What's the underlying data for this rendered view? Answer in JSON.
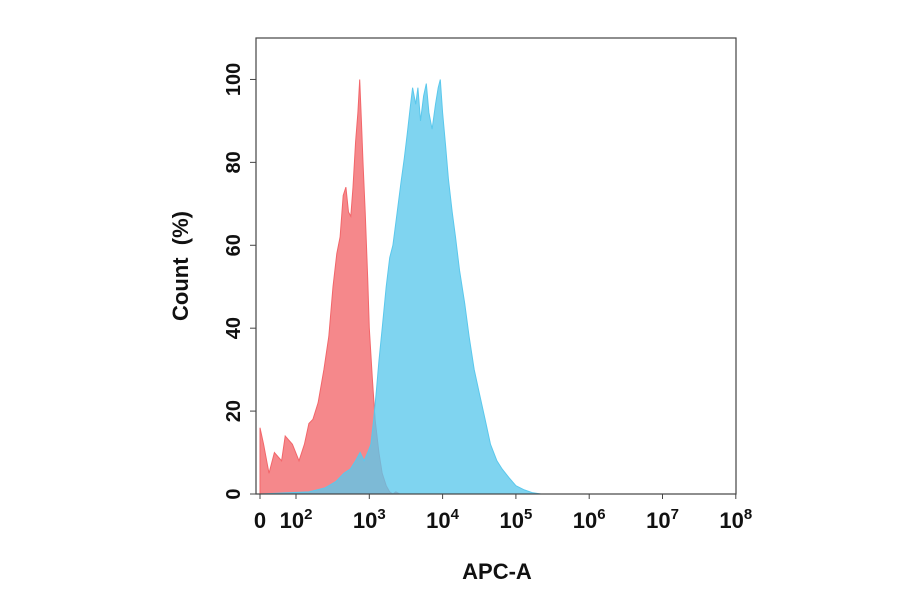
{
  "chart_data": {
    "type": "area",
    "title": "",
    "xlabel": "APC-A",
    "ylabel": "Count  (%)",
    "x_scale": "biexponential",
    "x_ticks": [
      {
        "value": 0,
        "base": "0",
        "exp": ""
      },
      {
        "value": 100,
        "base": "10",
        "exp": "2"
      },
      {
        "value": 1000,
        "base": "10",
        "exp": "3"
      },
      {
        "value": 10000,
        "base": "10",
        "exp": "4"
      },
      {
        "value": 100000,
        "base": "10",
        "exp": "5"
      },
      {
        "value": 1000000,
        "base": "10",
        "exp": "6"
      },
      {
        "value": 10000000,
        "base": "10",
        "exp": "7"
      },
      {
        "value": 100000000,
        "base": "10",
        "exp": "8"
      }
    ],
    "y_ticks": [
      0,
      20,
      40,
      60,
      80,
      100
    ],
    "ylim": [
      0,
      110
    ],
    "grid": false,
    "series": [
      {
        "color": "#f2666a",
        "points": [
          [
            0,
            16
          ],
          [
            10,
            12
          ],
          [
            25,
            5
          ],
          [
            40,
            10
          ],
          [
            60,
            8
          ],
          [
            70,
            14
          ],
          [
            90,
            12
          ],
          [
            110,
            8
          ],
          [
            130,
            12
          ],
          [
            150,
            17
          ],
          [
            170,
            18
          ],
          [
            200,
            22
          ],
          [
            240,
            30
          ],
          [
            280,
            38
          ],
          [
            320,
            50
          ],
          [
            360,
            58
          ],
          [
            400,
            62
          ],
          [
            440,
            72
          ],
          [
            480,
            74
          ],
          [
            520,
            68
          ],
          [
            560,
            67
          ],
          [
            600,
            74
          ],
          [
            650,
            85
          ],
          [
            700,
            92
          ],
          [
            740,
            100
          ],
          [
            780,
            90
          ],
          [
            820,
            80
          ],
          [
            880,
            68
          ],
          [
            950,
            52
          ],
          [
            1000,
            40
          ],
          [
            1100,
            28
          ],
          [
            1200,
            18
          ],
          [
            1350,
            10
          ],
          [
            1500,
            5
          ],
          [
            1700,
            2
          ],
          [
            1900,
            0.5
          ],
          [
            2100,
            0
          ],
          [
            2300,
            0.5
          ],
          [
            2600,
            0
          ]
        ]
      },
      {
        "color": "#5bc8ec",
        "points": [
          [
            0,
            0
          ],
          [
            150,
            0.5
          ],
          [
            250,
            1.5
          ],
          [
            350,
            3
          ],
          [
            450,
            5
          ],
          [
            550,
            6
          ],
          [
            650,
            8
          ],
          [
            750,
            10
          ],
          [
            850,
            8
          ],
          [
            950,
            10
          ],
          [
            1050,
            12
          ],
          [
            1150,
            18
          ],
          [
            1250,
            25
          ],
          [
            1350,
            32
          ],
          [
            1500,
            40
          ],
          [
            1700,
            50
          ],
          [
            1900,
            57
          ],
          [
            2100,
            60
          ],
          [
            2400,
            68
          ],
          [
            2700,
            75
          ],
          [
            3000,
            81
          ],
          [
            3300,
            87
          ],
          [
            3600,
            93
          ],
          [
            3900,
            98
          ],
          [
            4300,
            94
          ],
          [
            4600,
            98
          ],
          [
            5000,
            90
          ],
          [
            5500,
            96
          ],
          [
            6000,
            99
          ],
          [
            6500,
            92
          ],
          [
            7200,
            88
          ],
          [
            8000,
            94
          ],
          [
            8700,
            98
          ],
          [
            9300,
            100
          ],
          [
            10000,
            92
          ],
          [
            11000,
            84
          ],
          [
            12000,
            76
          ],
          [
            13500,
            68
          ],
          [
            15000,
            62
          ],
          [
            17000,
            54
          ],
          [
            20000,
            46
          ],
          [
            23000,
            38
          ],
          [
            27000,
            30
          ],
          [
            32000,
            24
          ],
          [
            38000,
            18
          ],
          [
            45000,
            12
          ],
          [
            55000,
            8
          ],
          [
            65000,
            6
          ],
          [
            80000,
            4
          ],
          [
            100000,
            2
          ],
          [
            130000,
            1
          ],
          [
            170000,
            0.3
          ],
          [
            220000,
            0
          ]
        ]
      }
    ]
  }
}
